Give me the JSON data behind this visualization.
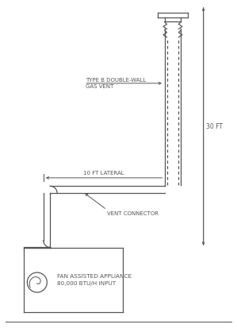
{
  "bg_color": "#ffffff",
  "line_color": "#555555",
  "text_color": "#555555",
  "fig_width": 2.99,
  "fig_height": 4.18,
  "labels": {
    "type_b": "TYPE B DOUBLE-WALL\nGAS VENT",
    "lateral": "10 FT LATERAL",
    "vent_connector": "VENT CONNECTOR",
    "fan": "FAN ASSISTED APPLIANCE\n80,000 BTU/H INPUT",
    "height": "30 FT"
  }
}
